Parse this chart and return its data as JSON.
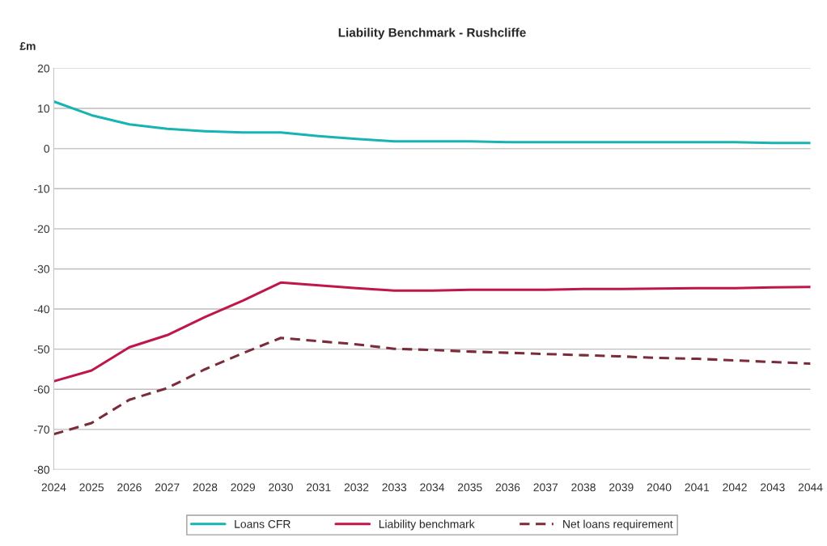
{
  "chart_data": {
    "type": "line",
    "title": "Liability Benchmark - Rushcliffe",
    "ylabel": "£m",
    "categories": [
      "2024",
      "2025",
      "2026",
      "2027",
      "2028",
      "2029",
      "2030",
      "2031",
      "2032",
      "2033",
      "2034",
      "2035",
      "2036",
      "2037",
      "2038",
      "2039",
      "2040",
      "2041",
      "2042",
      "2043",
      "2044"
    ],
    "series": [
      {
        "name": "Loans CFR",
        "color": "#19b3b3",
        "line_style": "solid",
        "values": [
          11.7,
          8.3,
          6,
          4.9,
          4.3,
          4,
          4,
          3.1,
          2.4,
          1.8,
          1.8,
          1.8,
          1.6,
          1.6,
          1.6,
          1.6,
          1.6,
          1.6,
          1.6,
          1.4,
          1.4
        ]
      },
      {
        "name": "Liability benchmark",
        "color": "#c0174a",
        "line_style": "solid",
        "values": [
          -58,
          -55.3,
          -49.5,
          -46.5,
          -42,
          -37.9,
          -33.4,
          -34.1,
          -34.8,
          -35.4,
          -35.4,
          -35.2,
          -35.2,
          -35.2,
          -35,
          -35,
          -34.9,
          -34.8,
          -34.8,
          -34.6,
          -34.5
        ]
      },
      {
        "name": "Net loans requirement",
        "color": "#7b2c3a",
        "line_style": "dashed",
        "values": [
          -71.2,
          -68.4,
          -62.6,
          -59.7,
          -55,
          -51,
          -47.2,
          -48,
          -48.8,
          -49.9,
          -50.2,
          -50.6,
          -50.9,
          -51.2,
          -51.5,
          -51.8,
          -52.2,
          -52.4,
          -52.8,
          -53.2,
          -53.6
        ]
      }
    ],
    "ylim": [
      -80,
      20
    ],
    "yticks": [
      -80,
      -70,
      -60,
      -50,
      -40,
      -30,
      -20,
      -10,
      0,
      10,
      20
    ],
    "grid": "y",
    "legend": "bottom",
    "marker": "none"
  }
}
